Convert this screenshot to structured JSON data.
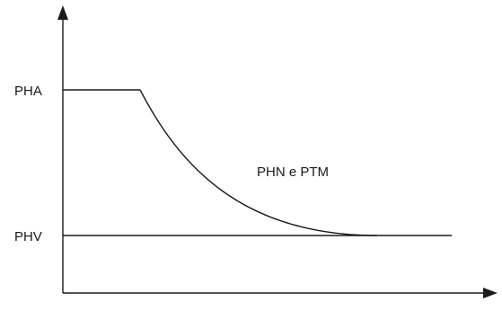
{
  "diagram": {
    "labels": {
      "pha": "PHA",
      "phv": "PHV",
      "curve": "PHN e PTM"
    },
    "colors": {
      "stroke": "#1a1a1a",
      "background": "#ffffff"
    }
  }
}
